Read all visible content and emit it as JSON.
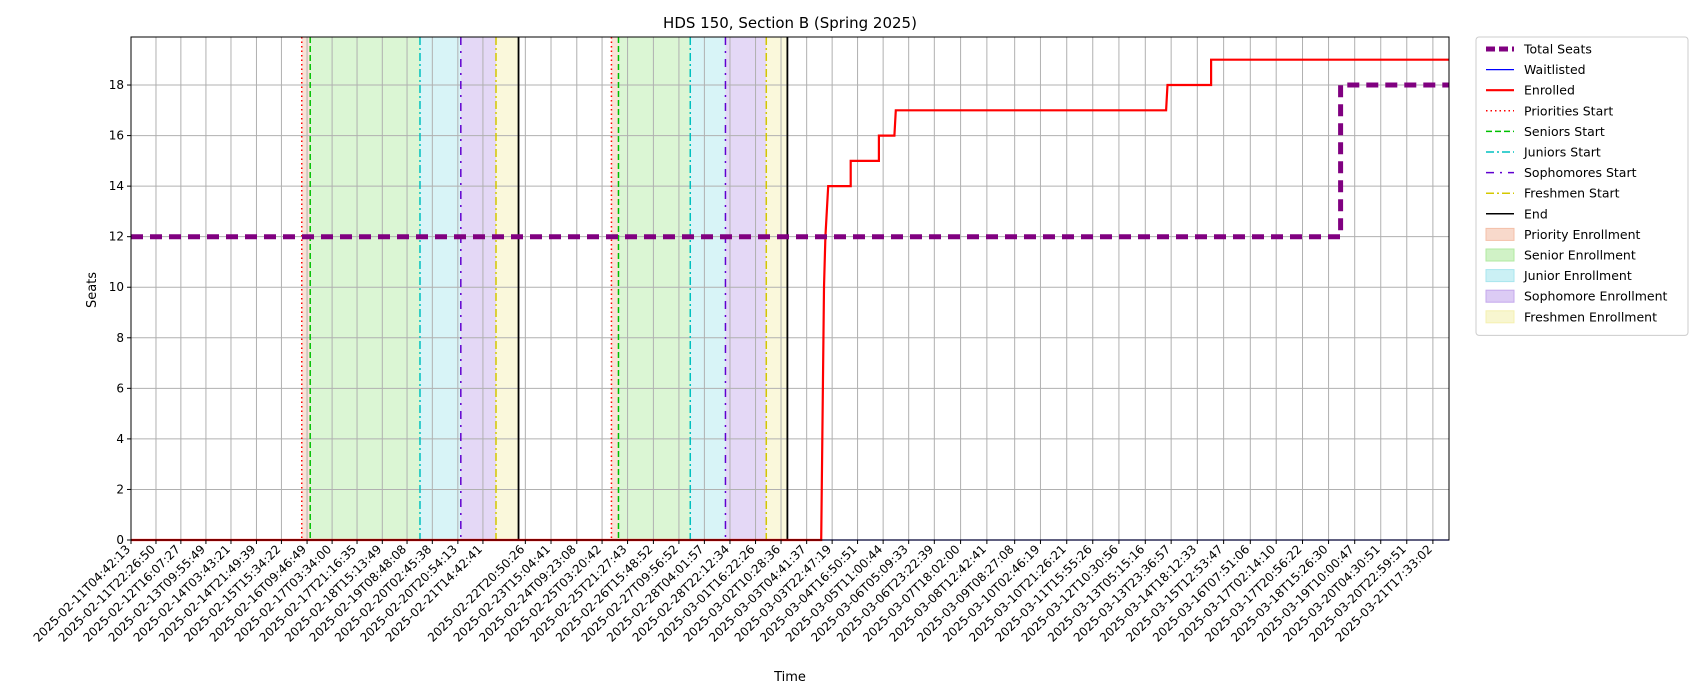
{
  "chart_data": {
    "type": "line",
    "title": "HDS 150, Section B (Spring 2025)",
    "xlabel": "Time",
    "ylabel": "Seats",
    "xlim": [
      "2025-02-11T04:42:13",
      "2025-03-22T05:00:00"
    ],
    "ylim": [
      0,
      19.9
    ],
    "yticks": [
      0,
      2,
      4,
      6,
      8,
      10,
      12,
      14,
      16,
      18
    ],
    "grid": true,
    "legend_position": "outside-right",
    "xtick_labels": [
      "2025-02-11T04:42:13",
      "2025-02-11T22:26:50",
      "2025-02-12T16:07:27",
      "2025-02-13T09:55:49",
      "2025-02-14T03:43:21",
      "2025-02-14T21:49:39",
      "2025-02-15T15:34:22",
      "2025-02-16T09:46:49",
      "2025-02-17T03:34:00",
      "2025-02-17T21:16:35",
      "2025-02-18T15:13:49",
      "2025-02-19T08:48:08",
      "2025-02-20T02:45:38",
      "2025-02-20T20:54:13",
      "2025-02-21T14:42:41",
      "2025-02-22T20:50:26",
      "2025-02-23T15:04:41",
      "2025-02-24T09:23:08",
      "2025-02-25T03:20:42",
      "2025-02-25T21:27:43",
      "2025-02-26T15:48:52",
      "2025-02-27T09:56:52",
      "2025-02-28T04:01:57",
      "2025-02-28T22:12:34",
      "2025-03-01T16:22:26",
      "2025-03-02T10:28:36",
      "2025-03-03T04:41:37",
      "2025-03-03T22:47:19",
      "2025-03-04T16:50:51",
      "2025-03-05T11:00:44",
      "2025-03-06T05:09:33",
      "2025-03-06T23:22:39",
      "2025-03-07T18:02:00",
      "2025-03-08T12:42:41",
      "2025-03-09T08:27:08",
      "2025-03-10T02:46:19",
      "2025-03-10T21:26:21",
      "2025-03-11T15:55:26",
      "2025-03-12T10:30:56",
      "2025-03-13T05:15:16",
      "2025-03-13T23:36:57",
      "2025-03-14T18:12:33",
      "2025-03-15T12:53:47",
      "2025-03-16T07:51:06",
      "2025-03-17T02:14:10",
      "2025-03-17T20:56:22",
      "2025-03-18T15:26:30",
      "2025-03-19T10:00:47",
      "2025-03-20T04:30:51",
      "2025-03-20T22:59:51",
      "2025-03-21T17:33:02"
    ],
    "series": [
      {
        "name": "Total Seats",
        "color": "#800080",
        "style": "dashed",
        "points": [
          [
            "2025-02-11T04:42:13",
            12
          ],
          [
            "2025-03-19T00:00:00",
            12
          ],
          [
            "2025-03-19T00:00:00",
            18
          ],
          [
            "2025-03-22T05:00:00",
            18
          ]
        ]
      },
      {
        "name": "Waitlisted",
        "color": "#0000ff",
        "style": "solid",
        "points": [
          [
            "2025-02-11T04:42:13",
            0
          ],
          [
            "2025-03-22T05:00:00",
            0
          ]
        ]
      },
      {
        "name": "Enrolled",
        "color": "#ff0000",
        "style": "solid",
        "points": [
          [
            "2025-02-11T04:42:13",
            0
          ],
          [
            "2025-03-03T15:00:00",
            0
          ],
          [
            "2025-03-03T17:00:00",
            10
          ],
          [
            "2025-03-03T18:00:00",
            12
          ],
          [
            "2025-03-03T19:00:00",
            13
          ],
          [
            "2025-03-03T20:00:00",
            14
          ],
          [
            "2025-03-04T12:00:00",
            14
          ],
          [
            "2025-03-04T12:00:00",
            15
          ],
          [
            "2025-03-05T08:00:00",
            15
          ],
          [
            "2025-03-05T08:00:00",
            16
          ],
          [
            "2025-03-05T19:00:00",
            16
          ],
          [
            "2025-03-05T20:00:00",
            17
          ],
          [
            "2025-03-13T20:00:00",
            17
          ],
          [
            "2025-03-13T21:00:00",
            18
          ],
          [
            "2025-03-15T04:00:00",
            18
          ],
          [
            "2025-03-15T04:00:00",
            19
          ],
          [
            "2025-03-22T05:00:00",
            19
          ]
        ]
      }
    ],
    "markers": [
      {
        "name": "Priorities Start",
        "color": "#ff0000",
        "style": "dotted",
        "times": [
          "2025-02-16T06:00:00",
          "2025-02-25T10:00:00"
        ]
      },
      {
        "name": "Seniors Start",
        "color": "#00c000",
        "style": "dashed",
        "times": [
          "2025-02-16T12:00:00",
          "2025-02-25T15:00:00"
        ]
      },
      {
        "name": "Juniors Start",
        "color": "#00c0c0",
        "style": "dashdot",
        "times": [
          "2025-02-19T18:00:00",
          "2025-02-27T18:00:00"
        ]
      },
      {
        "name": "Sophomores Start",
        "color": "#6000d0",
        "style": "sparse-dashdot",
        "times": [
          "2025-02-20T23:00:00",
          "2025-02-28T19:00:00"
        ]
      },
      {
        "name": "Freshmen Start",
        "color": "#d4c800",
        "style": "dashdot",
        "times": [
          "2025-02-22T00:00:00",
          "2025-03-02T00:00:00"
        ]
      },
      {
        "name": "End",
        "color": "#000000",
        "style": "solid",
        "times": [
          "2025-02-22T16:00:00",
          "2025-03-02T15:00:00"
        ]
      }
    ],
    "regions": [
      {
        "name": "Priority Enrollment",
        "color": "#f4c0a8",
        "spans": [
          [
            "2025-02-16T06:00:00",
            "2025-02-16T12:00:00"
          ],
          [
            "2025-02-25T10:00:00",
            "2025-02-25T15:00:00"
          ]
        ]
      },
      {
        "name": "Senior Enrollment",
        "color": "#b0eaa0",
        "spans": [
          [
            "2025-02-16T12:00:00",
            "2025-02-19T18:00:00"
          ],
          [
            "2025-02-25T15:00:00",
            "2025-02-27T18:00:00"
          ]
        ]
      },
      {
        "name": "Junior Enrollment",
        "color": "#a8e6ee",
        "spans": [
          [
            "2025-02-19T18:00:00",
            "2025-02-20T23:00:00"
          ],
          [
            "2025-02-27T18:00:00",
            "2025-02-28T19:00:00"
          ]
        ]
      },
      {
        "name": "Sophomore Enrollment",
        "color": "#c4a8ec",
        "spans": [
          [
            "2025-02-20T23:00:00",
            "2025-02-22T00:00:00"
          ],
          [
            "2025-02-28T19:00:00",
            "2025-03-02T00:00:00"
          ]
        ]
      },
      {
        "name": "Freshmen Enrollment",
        "color": "#f4f0b0",
        "spans": [
          [
            "2025-02-22T00:00:00",
            "2025-02-22T16:00:00"
          ],
          [
            "2025-03-02T00:00:00",
            "2025-03-02T15:00:00"
          ]
        ]
      }
    ]
  }
}
